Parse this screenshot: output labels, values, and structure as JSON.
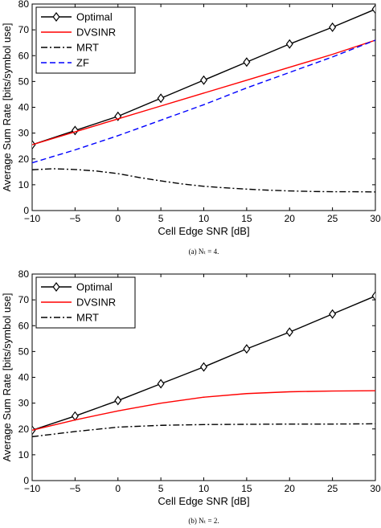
{
  "chart_data": [
    {
      "type": "line",
      "caption": "(a)  Nₜ = 4.",
      "xlabel": "Cell Edge SNR [dB]",
      "ylabel": "Average Sum Rate [bits/symbol use]",
      "xlim": [
        -10,
        30
      ],
      "ylim": [
        0,
        80
      ],
      "xticks": [
        -10,
        -5,
        0,
        5,
        10,
        15,
        20,
        25,
        30
      ],
      "yticks": [
        0,
        10,
        20,
        30,
        40,
        50,
        60,
        70,
        80
      ],
      "grid": false,
      "legend_position": "top-left",
      "series": [
        {
          "name": "Optimal",
          "color": "#000000",
          "style": "solid",
          "marker": "diamond",
          "x": [
            -10,
            -5,
            0,
            5,
            10,
            15,
            20,
            25,
            30
          ],
          "y": [
            25.5,
            31,
            36.5,
            43.5,
            50.5,
            57.5,
            64.5,
            71,
            78
          ]
        },
        {
          "name": "DVSINR",
          "color": "#ff0000",
          "style": "solid",
          "marker": "none",
          "x": [
            -10,
            -5,
            0,
            5,
            10,
            15,
            20,
            25,
            30
          ],
          "y": [
            25.5,
            30.5,
            35.5,
            40.5,
            45.5,
            50.5,
            55.5,
            60.5,
            66
          ]
        },
        {
          "name": "MRT",
          "color": "#000000",
          "style": "dashdot",
          "marker": "none",
          "x": [
            -10,
            -7.5,
            -5,
            -2.5,
            0,
            2.5,
            5,
            7.5,
            10,
            12.5,
            15,
            17.5,
            20,
            22.5,
            25,
            27.5,
            30
          ],
          "y": [
            15.8,
            16.2,
            15.9,
            15.3,
            14.3,
            12.8,
            11.5,
            10.3,
            9.4,
            8.8,
            8.3,
            7.9,
            7.6,
            7.4,
            7.3,
            7.3,
            7.2
          ]
        },
        {
          "name": "ZF",
          "color": "#0000ff",
          "style": "dashed",
          "marker": "none",
          "x": [
            -10,
            -5,
            0,
            5,
            10,
            15,
            20,
            25,
            30
          ],
          "y": [
            18.5,
            23.5,
            29,
            35,
            41,
            47.5,
            53.5,
            59.5,
            66
          ]
        }
      ]
    },
    {
      "type": "line",
      "caption": "(b)  Nₜ = 2.",
      "xlabel": "Cell Edge SNR [dB]",
      "ylabel": "Average Sum Rate [bits/symbol use]",
      "xlim": [
        -10,
        30
      ],
      "ylim": [
        0,
        80
      ],
      "xticks": [
        -10,
        -5,
        0,
        5,
        10,
        15,
        20,
        25,
        30
      ],
      "yticks": [
        0,
        10,
        20,
        30,
        40,
        50,
        60,
        70,
        80
      ],
      "grid": false,
      "legend_position": "top-left",
      "series": [
        {
          "name": "Optimal",
          "color": "#000000",
          "style": "solid",
          "marker": "diamond",
          "x": [
            -10,
            -5,
            0,
            5,
            10,
            15,
            20,
            25,
            30
          ],
          "y": [
            19.5,
            25,
            31,
            37.5,
            44,
            51,
            57.5,
            64.5,
            71.5
          ]
        },
        {
          "name": "DVSINR",
          "color": "#ff0000",
          "style": "solid",
          "marker": "none",
          "x": [
            -10,
            -5,
            0,
            5,
            10,
            15,
            20,
            25,
            30
          ],
          "y": [
            19.5,
            23.5,
            27,
            30,
            32.3,
            33.7,
            34.4,
            34.7,
            34.8
          ]
        },
        {
          "name": "MRT",
          "color": "#000000",
          "style": "dashdot",
          "marker": "none",
          "x": [
            -10,
            -5,
            0,
            5,
            10,
            15,
            20,
            25,
            30
          ],
          "y": [
            17,
            19,
            20.7,
            21.4,
            21.7,
            21.8,
            21.9,
            21.9,
            22
          ]
        }
      ]
    }
  ]
}
